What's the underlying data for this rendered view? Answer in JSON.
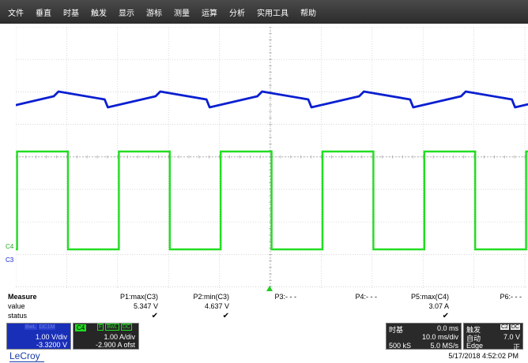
{
  "menu": [
    "文件",
    "垂直",
    "时基",
    "触发",
    "显示",
    "游标",
    "测量",
    "运算",
    "分析",
    "实用工具",
    "帮助"
  ],
  "channels": {
    "c4_marker": "C4",
    "c3_marker": "C3",
    "c3_color": "#0a1fd0",
    "c4_color": "#22dd22"
  },
  "measure": {
    "title": "Measure",
    "row_labels": [
      "value",
      "status"
    ],
    "params": [
      {
        "name": "P1:max(C3)",
        "value": "5.347 V",
        "status": "✔"
      },
      {
        "name": "P2:min(C3)",
        "value": "4.637 V",
        "status": "✔"
      },
      {
        "name": "P3:- - -",
        "value": "",
        "status": ""
      },
      {
        "name": "P4:- - -",
        "value": "",
        "status": ""
      },
      {
        "name": "P5:max(C4)",
        "value": "3.07 A",
        "status": "✔"
      },
      {
        "name": "P6:- - -",
        "value": "",
        "status": ""
      }
    ]
  },
  "c3_desc": {
    "tag": "C3",
    "badge1": "BwL",
    "badge2": "DC1M",
    "scale": "1.00 V/div",
    "offset": "-3.3200 V"
  },
  "c4_desc": {
    "tag": "C4",
    "badge0": "F",
    "badge1": "BwL",
    "badge2": "DC",
    "scale": "1.00 A/div",
    "offset": "-2.900 A ofst"
  },
  "timebase": {
    "label": "时基",
    "delay": "0.0 ms",
    "scale": "10.0 ms/div",
    "samples": "500 kS",
    "rate": "5.0 MS/s"
  },
  "trigger": {
    "label": "触发",
    "badge1": "C2",
    "badge2": "DC",
    "mode": "自动",
    "level": "7.0 V",
    "type": "Edge",
    "slope": "正"
  },
  "brand": "LeCroy",
  "timestamp": "5/17/2018 4:52:02 PM"
}
